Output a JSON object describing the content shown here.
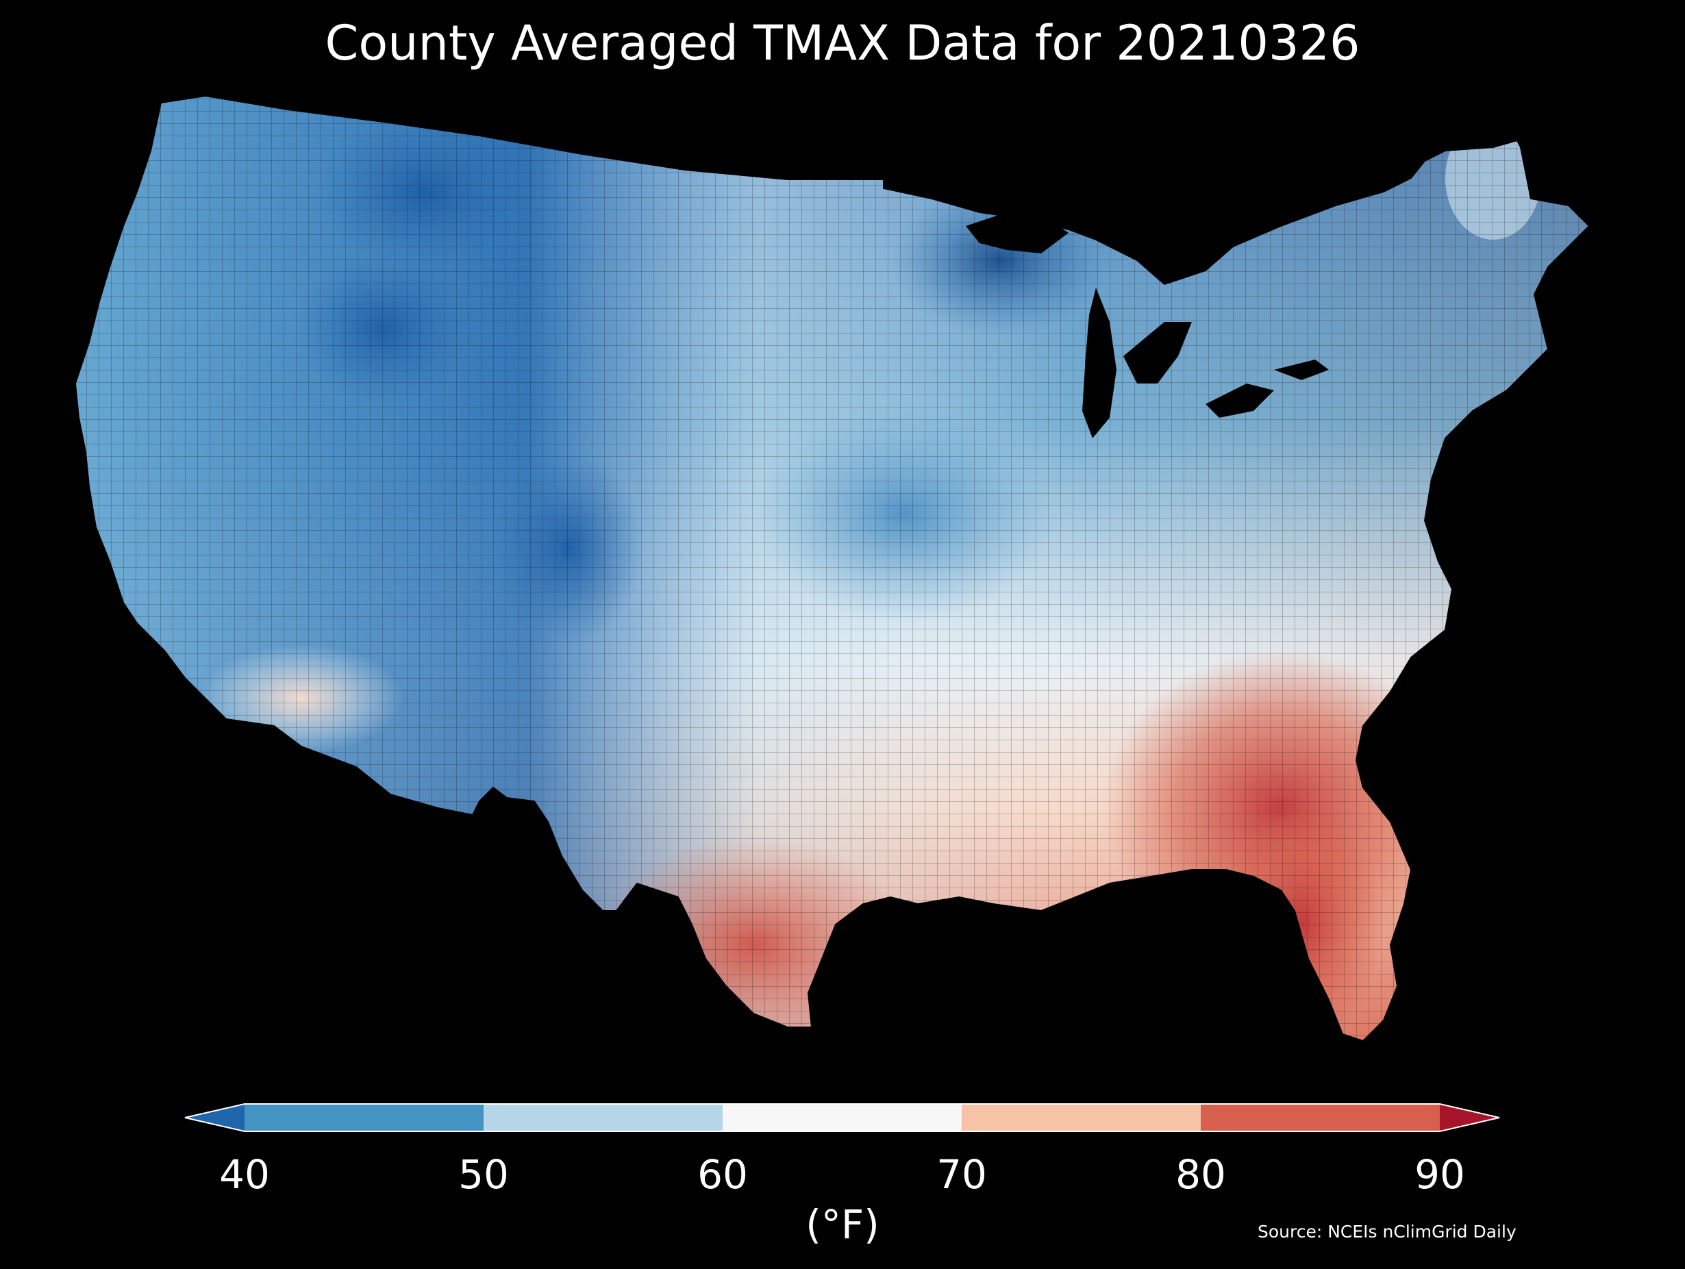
{
  "title": "County Averaged TMAX Data for 20210326",
  "colorbar": {
    "unit": "(°F)",
    "ticks": [
      "40",
      "50",
      "60",
      "70",
      "80",
      "90"
    ],
    "bins": [
      {
        "range": "<40",
        "color": "#2166ac"
      },
      {
        "range": "40-50",
        "color": "#4393c3"
      },
      {
        "range": "50-60",
        "color": "#b5d6e8"
      },
      {
        "range": "60-70",
        "color": "#f7f7f7"
      },
      {
        "range": "70-80",
        "color": "#f7c3a7"
      },
      {
        "range": "80-90",
        "color": "#d6604d"
      },
      {
        "range": ">90",
        "color": "#a71329"
      }
    ]
  },
  "source": "Source: NCEIs nClimGrid Daily",
  "map": {
    "region": "contiguous United States",
    "unit": "county",
    "background_color": "#000000",
    "border_color": "#000000"
  }
}
